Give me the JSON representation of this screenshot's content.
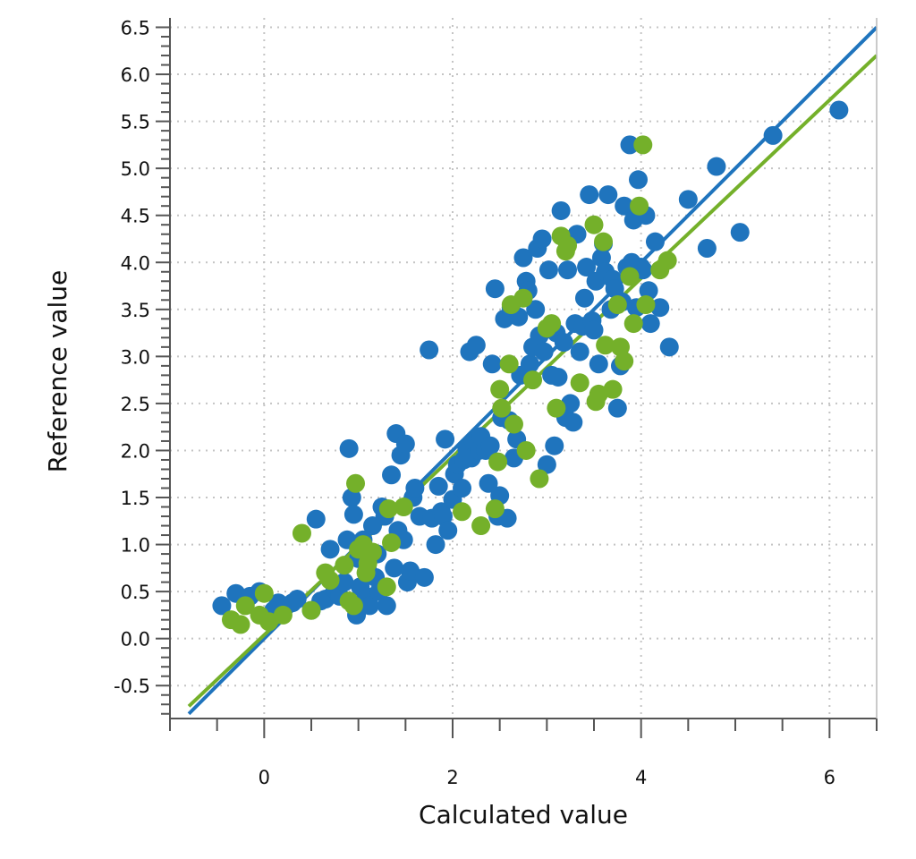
{
  "chart_data": {
    "type": "scatter",
    "xlabel": "Calculated value",
    "ylabel": "Reference value",
    "xlim": [
      -1.0,
      6.5
    ],
    "ylim": [
      -0.85,
      6.6
    ],
    "x_ticks": [
      0,
      2,
      4,
      6
    ],
    "x_tick_labels": [
      "0",
      "2",
      "4",
      "6"
    ],
    "y_ticks": [
      -0.5,
      0.0,
      0.5,
      1.0,
      1.5,
      2.0,
      2.5,
      3.0,
      3.5,
      4.0,
      4.5,
      5.0,
      5.5,
      6.0,
      6.5
    ],
    "y_tick_labels": [
      "-0.5",
      "0.0",
      "0.5",
      "1.0",
      "1.5",
      "2.0",
      "2.5",
      "3.0",
      "3.5",
      "4.0",
      "4.5",
      "5.0",
      "5.5",
      "6.0",
      "6.5"
    ],
    "grid": true,
    "legend": "none",
    "series": [
      {
        "color": "#1f74bd",
        "fit_line": [
          [
            -0.8,
            -0.8
          ],
          [
            6.5,
            6.5
          ]
        ],
        "points": [
          [
            -0.45,
            0.35
          ],
          [
            -0.3,
            0.48
          ],
          [
            -0.15,
            0.45
          ],
          [
            -0.05,
            0.5
          ],
          [
            0.1,
            0.3
          ],
          [
            0.15,
            0.38
          ],
          [
            0.3,
            0.38
          ],
          [
            0.35,
            0.42
          ],
          [
            0.5,
            0.3
          ],
          [
            0.55,
            1.27
          ],
          [
            0.6,
            0.4
          ],
          [
            0.65,
            0.42
          ],
          [
            0.7,
            0.95
          ],
          [
            0.75,
            0.52
          ],
          [
            0.8,
            0.45
          ],
          [
            0.85,
            0.6
          ],
          [
            0.88,
            1.05
          ],
          [
            0.9,
            2.02
          ],
          [
            0.93,
            1.5
          ],
          [
            0.95,
            1.32
          ],
          [
            0.98,
            0.25
          ],
          [
            1.0,
            0.85
          ],
          [
            1.02,
            0.55
          ],
          [
            1.05,
            1.05
          ],
          [
            1.08,
            0.45
          ],
          [
            1.1,
            0.72
          ],
          [
            1.12,
            0.35
          ],
          [
            1.15,
            1.2
          ],
          [
            1.18,
            0.65
          ],
          [
            1.2,
            0.9
          ],
          [
            1.22,
            0.5
          ],
          [
            1.25,
            1.4
          ],
          [
            1.28,
            1.3
          ],
          [
            1.3,
            0.35
          ],
          [
            1.35,
            1.74
          ],
          [
            1.38,
            0.75
          ],
          [
            1.4,
            2.18
          ],
          [
            1.42,
            1.15
          ],
          [
            1.45,
            1.95
          ],
          [
            1.48,
            1.05
          ],
          [
            1.5,
            2.07
          ],
          [
            1.52,
            0.6
          ],
          [
            1.55,
            0.72
          ],
          [
            1.58,
            1.5
          ],
          [
            1.6,
            1.6
          ],
          [
            1.65,
            1.3
          ],
          [
            1.7,
            0.65
          ],
          [
            1.75,
            3.07
          ],
          [
            1.78,
            1.28
          ],
          [
            1.82,
            1.0
          ],
          [
            1.85,
            1.62
          ],
          [
            1.88,
            1.35
          ],
          [
            1.9,
            1.3
          ],
          [
            1.92,
            2.12
          ],
          [
            1.95,
            1.15
          ],
          [
            2.0,
            1.48
          ],
          [
            2.02,
            1.75
          ],
          [
            2.05,
            1.85
          ],
          [
            2.1,
            1.6
          ],
          [
            2.12,
            1.9
          ],
          [
            2.15,
            2.02
          ],
          [
            2.18,
            3.05
          ],
          [
            2.2,
            1.92
          ],
          [
            2.22,
            2.1
          ],
          [
            2.25,
            3.12
          ],
          [
            2.28,
            2.0
          ],
          [
            2.3,
            2.15
          ],
          [
            2.35,
            2.0
          ],
          [
            2.38,
            1.65
          ],
          [
            2.4,
            2.05
          ],
          [
            2.42,
            2.92
          ],
          [
            2.45,
            3.72
          ],
          [
            2.48,
            1.3
          ],
          [
            2.5,
            1.52
          ],
          [
            2.52,
            2.35
          ],
          [
            2.55,
            3.4
          ],
          [
            2.58,
            1.28
          ],
          [
            2.6,
            2.32
          ],
          [
            2.62,
            3.52
          ],
          [
            2.65,
            1.92
          ],
          [
            2.68,
            2.12
          ],
          [
            2.7,
            3.42
          ],
          [
            2.72,
            2.8
          ],
          [
            2.75,
            4.05
          ],
          [
            2.78,
            3.8
          ],
          [
            2.8,
            3.7
          ],
          [
            2.82,
            2.92
          ],
          [
            2.85,
            3.1
          ],
          [
            2.88,
            3.5
          ],
          [
            2.9,
            4.15
          ],
          [
            2.92,
            3.22
          ],
          [
            2.95,
            4.25
          ],
          [
            2.97,
            3.05
          ],
          [
            3.0,
            1.85
          ],
          [
            3.02,
            3.92
          ],
          [
            3.05,
            2.8
          ],
          [
            3.08,
            2.05
          ],
          [
            3.1,
            3.25
          ],
          [
            3.12,
            2.78
          ],
          [
            3.15,
            4.55
          ],
          [
            3.18,
            3.15
          ],
          [
            3.2,
            2.35
          ],
          [
            3.22,
            3.92
          ],
          [
            3.25,
            2.5
          ],
          [
            3.28,
            2.3
          ],
          [
            3.3,
            3.35
          ],
          [
            3.32,
            4.3
          ],
          [
            3.35,
            3.05
          ],
          [
            3.38,
            3.32
          ],
          [
            3.4,
            3.62
          ],
          [
            3.42,
            3.95
          ],
          [
            3.45,
            4.72
          ],
          [
            3.48,
            3.38
          ],
          [
            3.5,
            3.28
          ],
          [
            3.52,
            3.8
          ],
          [
            3.55,
            2.92
          ],
          [
            3.58,
            4.05
          ],
          [
            3.6,
            4.2
          ],
          [
            3.62,
            3.9
          ],
          [
            3.65,
            4.72
          ],
          [
            3.68,
            3.5
          ],
          [
            3.7,
            3.82
          ],
          [
            3.72,
            3.72
          ],
          [
            3.75,
            2.45
          ],
          [
            3.78,
            2.9
          ],
          [
            3.8,
            3.58
          ],
          [
            3.82,
            4.6
          ],
          [
            3.85,
            3.95
          ],
          [
            3.88,
            5.25
          ],
          [
            3.9,
            4.0
          ],
          [
            3.92,
            4.45
          ],
          [
            3.95,
            3.52
          ],
          [
            3.97,
            4.88
          ],
          [
            4.0,
            3.95
          ],
          [
            4.02,
            3.92
          ],
          [
            4.05,
            4.5
          ],
          [
            4.08,
            3.7
          ],
          [
            4.1,
            3.35
          ],
          [
            4.15,
            4.22
          ],
          [
            4.2,
            3.52
          ],
          [
            4.3,
            3.1
          ],
          [
            4.5,
            4.67
          ],
          [
            4.7,
            4.15
          ],
          [
            4.8,
            5.02
          ],
          [
            5.05,
            4.32
          ],
          [
            5.4,
            5.35
          ],
          [
            6.1,
            5.62
          ]
        ]
      },
      {
        "color": "#74b02a",
        "fit_line": [
          [
            -0.8,
            -0.72
          ],
          [
            6.5,
            6.2
          ]
        ],
        "points": [
          [
            -0.35,
            0.2
          ],
          [
            -0.25,
            0.15
          ],
          [
            -0.2,
            0.35
          ],
          [
            -0.05,
            0.25
          ],
          [
            0.0,
            0.48
          ],
          [
            0.05,
            0.18
          ],
          [
            0.2,
            0.25
          ],
          [
            0.4,
            1.12
          ],
          [
            0.5,
            0.3
          ],
          [
            0.65,
            0.7
          ],
          [
            0.7,
            0.62
          ],
          [
            0.85,
            0.78
          ],
          [
            0.9,
            0.4
          ],
          [
            0.95,
            0.35
          ],
          [
            0.97,
            1.65
          ],
          [
            1.0,
            0.95
          ],
          [
            1.05,
            1.0
          ],
          [
            1.08,
            0.7
          ],
          [
            1.1,
            0.8
          ],
          [
            1.15,
            0.92
          ],
          [
            1.3,
            0.55
          ],
          [
            1.32,
            1.38
          ],
          [
            1.35,
            1.02
          ],
          [
            1.48,
            1.4
          ],
          [
            2.1,
            1.35
          ],
          [
            2.3,
            1.2
          ],
          [
            2.45,
            1.38
          ],
          [
            2.48,
            1.88
          ],
          [
            2.5,
            2.65
          ],
          [
            2.52,
            2.45
          ],
          [
            2.6,
            2.92
          ],
          [
            2.62,
            3.55
          ],
          [
            2.65,
            2.28
          ],
          [
            2.75,
            3.62
          ],
          [
            2.78,
            2.0
          ],
          [
            2.85,
            2.75
          ],
          [
            2.92,
            1.7
          ],
          [
            3.0,
            3.3
          ],
          [
            3.05,
            3.35
          ],
          [
            3.1,
            2.45
          ],
          [
            3.15,
            4.28
          ],
          [
            3.2,
            4.12
          ],
          [
            3.22,
            4.18
          ],
          [
            3.35,
            2.72
          ],
          [
            3.5,
            4.4
          ],
          [
            3.52,
            2.52
          ],
          [
            3.55,
            2.6
          ],
          [
            3.6,
            4.22
          ],
          [
            3.62,
            3.12
          ],
          [
            3.7,
            2.65
          ],
          [
            3.75,
            3.55
          ],
          [
            3.78,
            3.1
          ],
          [
            3.82,
            2.95
          ],
          [
            3.88,
            3.85
          ],
          [
            3.92,
            3.35
          ],
          [
            3.98,
            4.6
          ],
          [
            4.02,
            5.25
          ],
          [
            4.05,
            3.55
          ],
          [
            4.2,
            3.92
          ],
          [
            4.28,
            4.02
          ]
        ]
      }
    ]
  }
}
